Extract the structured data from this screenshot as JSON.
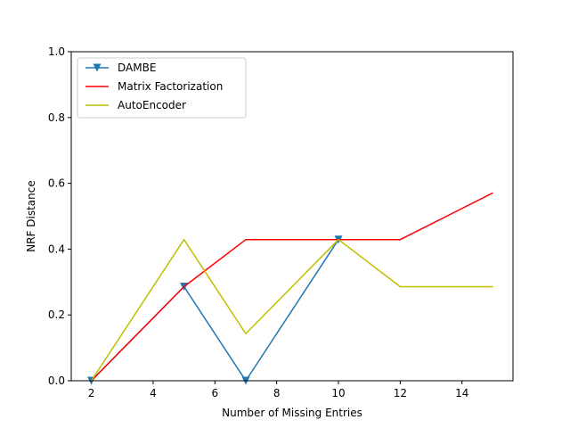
{
  "chart_data": {
    "type": "line",
    "xlabel": "Number of Missing Entries",
    "ylabel": "NRF Distance",
    "xlim": [
      1.35,
      15.65
    ],
    "ylim": [
      0,
      1.0
    ],
    "xticks": [
      2,
      4,
      6,
      8,
      10,
      12,
      14
    ],
    "yticks": [
      0.0,
      0.2,
      0.4,
      0.6,
      0.8,
      1.0
    ],
    "xtick_labels": [
      "2",
      "4",
      "6",
      "8",
      "10",
      "12",
      "14"
    ],
    "ytick_labels": [
      "0.0",
      "0.2",
      "0.4",
      "0.6",
      "0.8",
      "1.0"
    ],
    "grid": false,
    "legend_position": "top-left",
    "series": [
      {
        "name": "DAMBE",
        "color": "#1f77b4",
        "marker": "triangle-down",
        "x": [
          2,
          5,
          7,
          10
        ],
        "y": [
          0.0,
          0.286,
          0.0,
          0.429
        ]
      },
      {
        "name": "Matrix Factorization",
        "color": "#ff0000",
        "marker": "none",
        "x": [
          2,
          5,
          7,
          10,
          12,
          15
        ],
        "y": [
          0.0,
          0.286,
          0.429,
          0.429,
          0.429,
          0.571
        ]
      },
      {
        "name": "AutoEncoder",
        "color": "#bfbf00",
        "marker": "none",
        "x": [
          2,
          5,
          7,
          10,
          12,
          15
        ],
        "y": [
          0.0,
          0.429,
          0.143,
          0.429,
          0.286,
          0.286
        ]
      }
    ]
  }
}
